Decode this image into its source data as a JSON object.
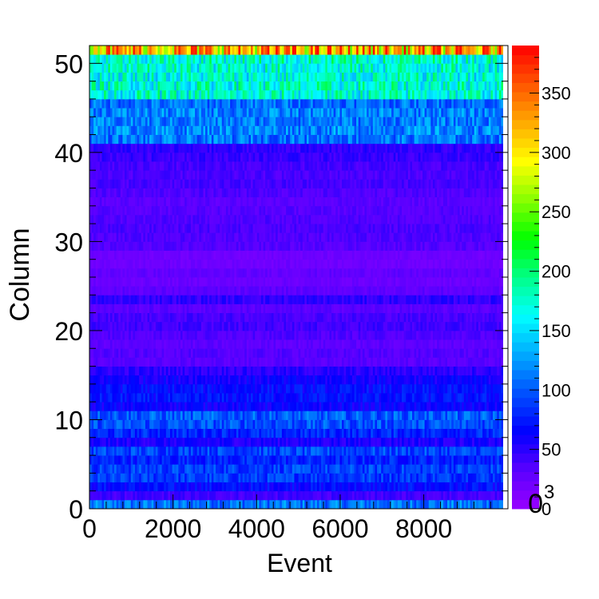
{
  "chart_data": {
    "type": "heatmap",
    "title": "",
    "xlabel": "Event",
    "ylabel": "Column",
    "xlim": [
      0,
      9900
    ],
    "ylim": [
      0,
      52
    ],
    "x_ticks": [
      0,
      2000,
      4000,
      6000,
      8000
    ],
    "y_ticks": [
      0,
      10,
      20,
      30,
      40,
      50
    ],
    "colorbar": {
      "range": [
        0,
        390
      ],
      "ticks": [
        0,
        50,
        100,
        150,
        200,
        250,
        300,
        350
      ],
      "exponent_label": "0",
      "exponent_superscript": "3",
      "palette": [
        "#9900ff",
        "#5a00ff",
        "#0000ff",
        "#0050ff",
        "#00aaff",
        "#00ffff",
        "#00ff88",
        "#00ff00",
        "#88ff00",
        "#ffff00",
        "#ffaa00",
        "#ff5500",
        "#ff0000"
      ]
    },
    "grid": false,
    "legend": "none",
    "columns": {
      "row_index": [
        0,
        1,
        2,
        3,
        4,
        5,
        6,
        7,
        8,
        9,
        10,
        11,
        12,
        13,
        14,
        15,
        16,
        17,
        18,
        19,
        20,
        21,
        22,
        23,
        24,
        25,
        26,
        27,
        28,
        29,
        30,
        31,
        32,
        33,
        34,
        35,
        36,
        37,
        38,
        39,
        40,
        41,
        42,
        43,
        44,
        45,
        46,
        47,
        48,
        49,
        50,
        51
      ],
      "mean_value": [
        110,
        42,
        68,
        88,
        90,
        78,
        92,
        55,
        80,
        96,
        100,
        62,
        70,
        68,
        60,
        50,
        32,
        34,
        30,
        36,
        42,
        40,
        32,
        48,
        30,
        24,
        28,
        22,
        22,
        34,
        36,
        38,
        36,
        34,
        32,
        36,
        40,
        38,
        40,
        46,
        48,
        110,
        118,
        112,
        115,
        108,
        170,
        172,
        168,
        170,
        175,
        320
      ]
    }
  }
}
